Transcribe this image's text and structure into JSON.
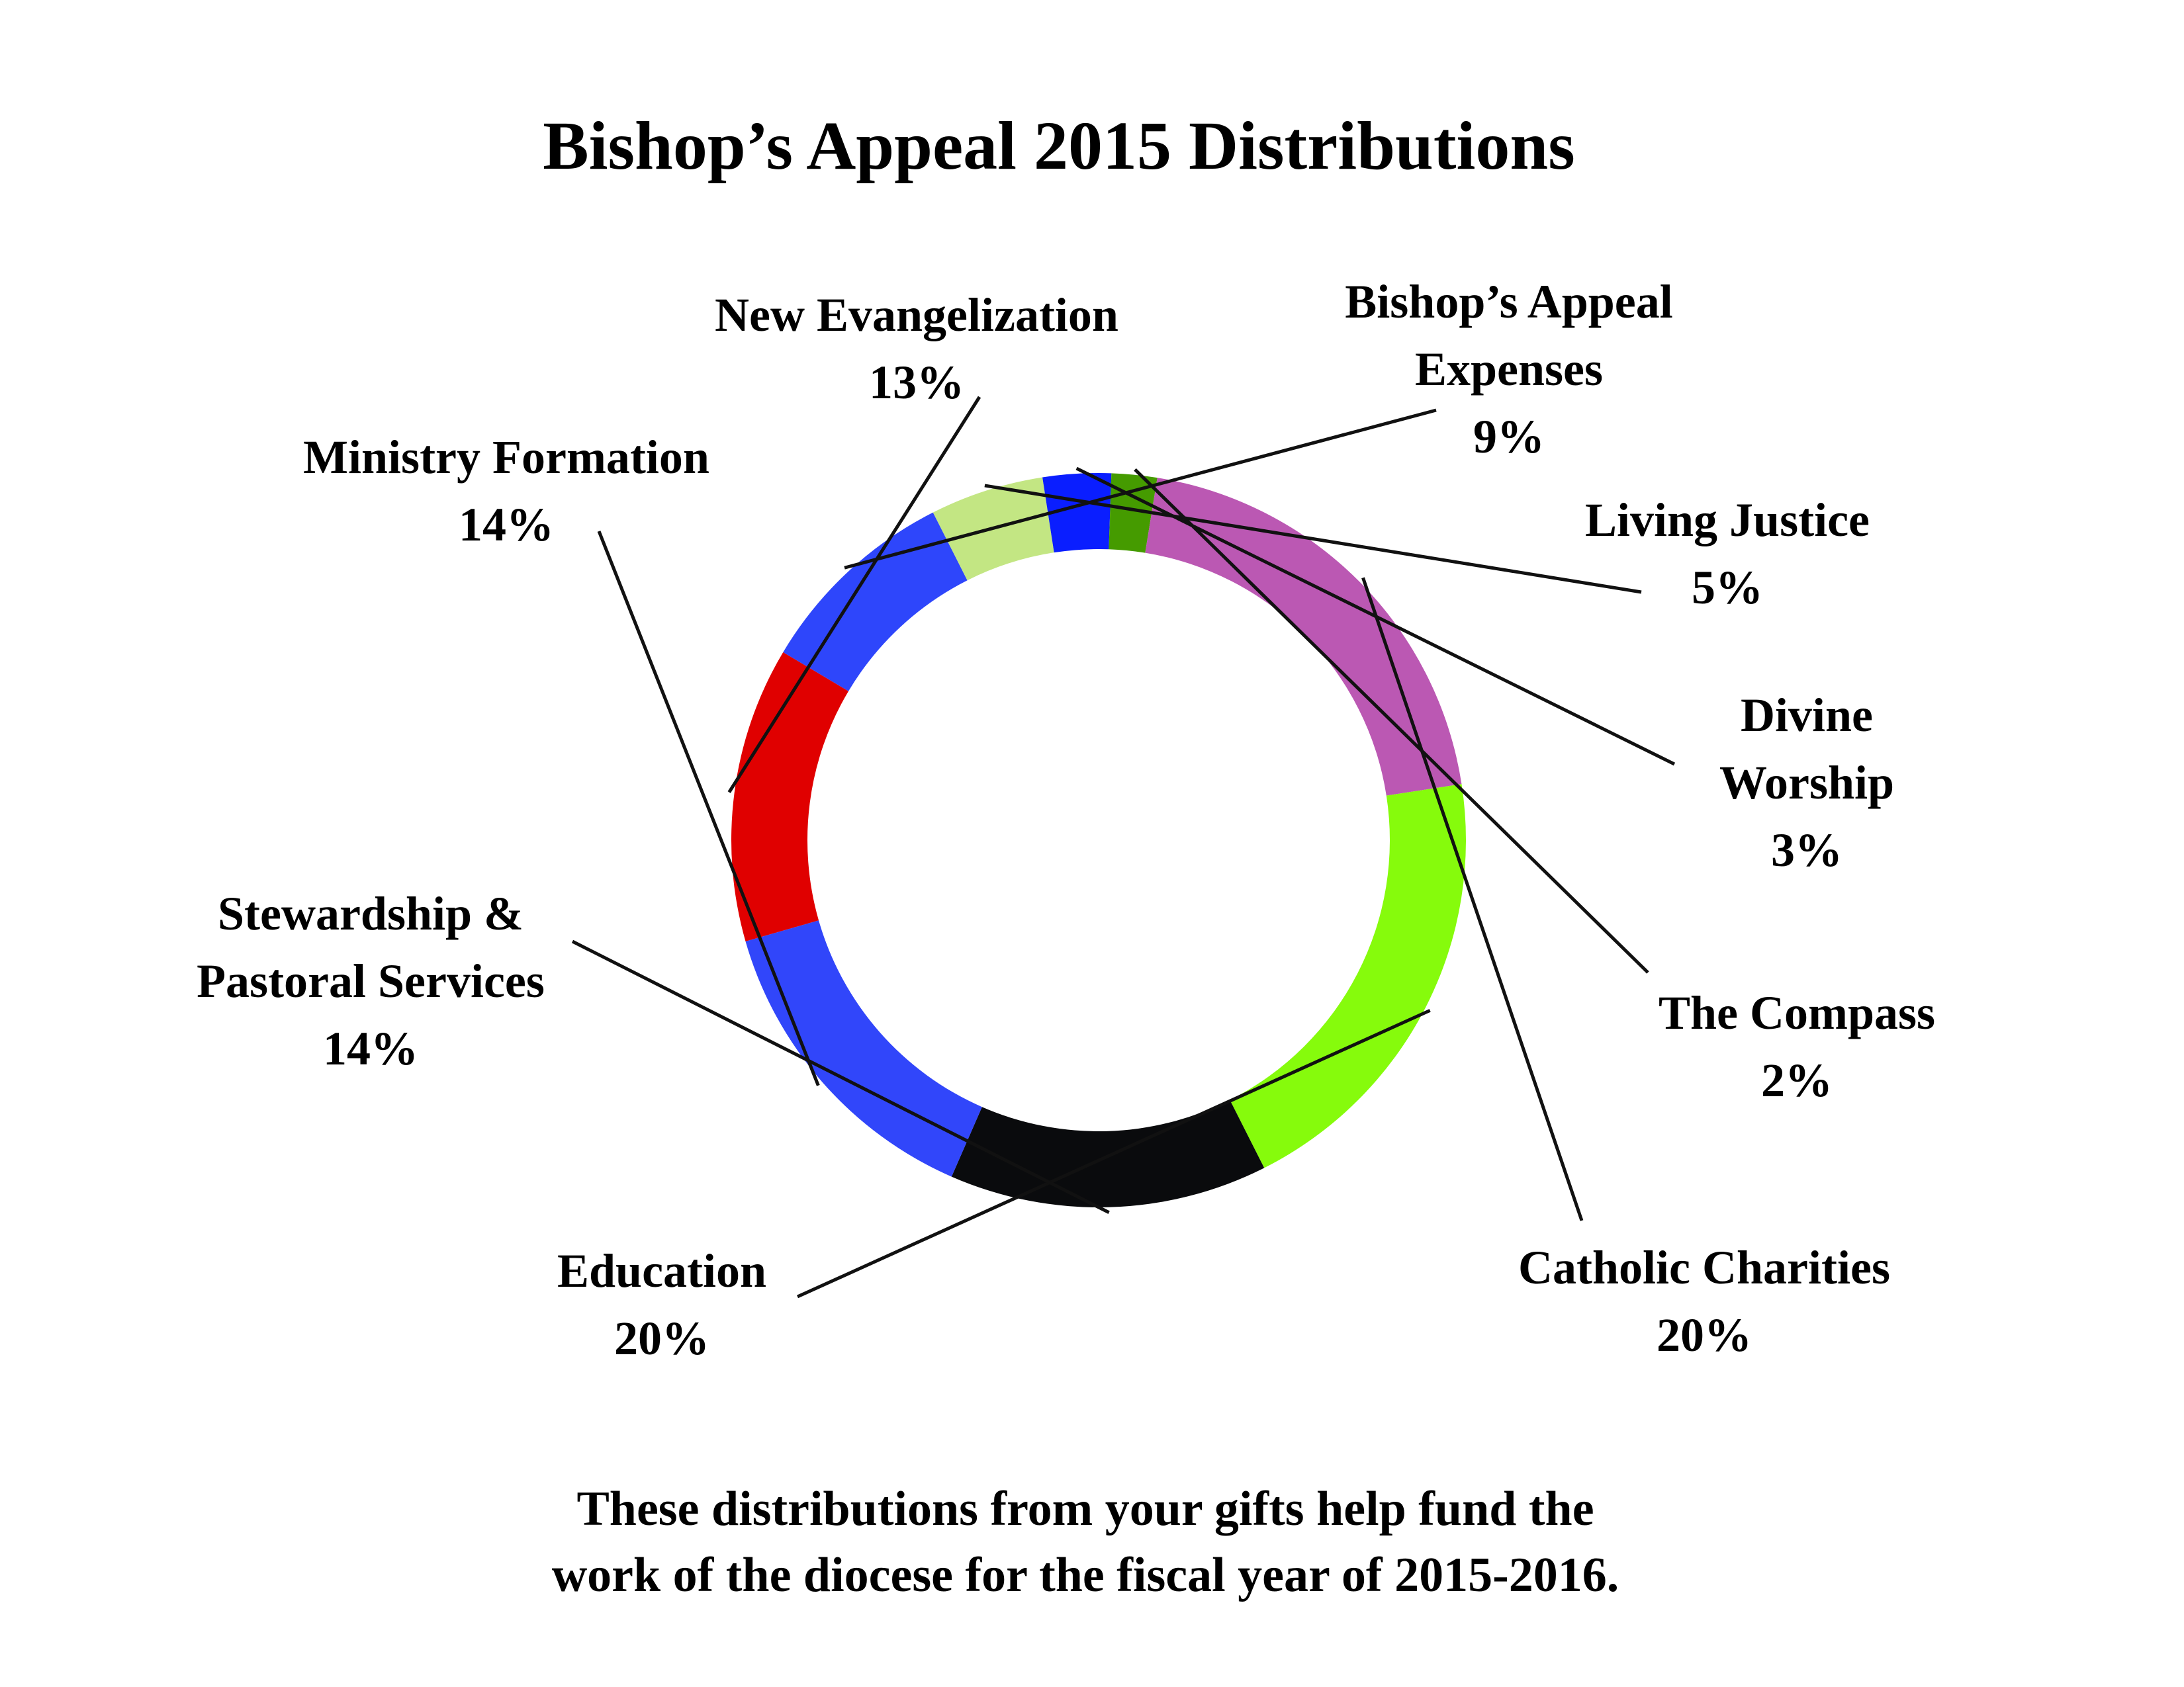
{
  "chart_data": {
    "type": "pie",
    "style": "donut",
    "title": "Bishop’s Appeal 2015 Distributions",
    "caption": [
      "These distributions from your gifts help fund the",
      "work of the diocese for the fiscal year of 2015-2016."
    ],
    "slices": [
      {
        "label": [
          "New Evangelization"
        ],
        "value": 13,
        "display": "13%",
        "color": "#e00000"
      },
      {
        "label": [
          "Bishop’s Appeal",
          "Expenses"
        ],
        "value": 9,
        "display": "9%",
        "color": "#2e46fb"
      },
      {
        "label": [
          "Living Justice"
        ],
        "value": 5,
        "display": "5%",
        "color": "#c3e683"
      },
      {
        "label": [
          "Divine",
          "Worship"
        ],
        "value": 3,
        "display": "3%",
        "color": "#0a1eff"
      },
      {
        "label": [
          "The Compass"
        ],
        "value": 2,
        "display": "2%",
        "color": "#459b00"
      },
      {
        "label": [
          "Catholic Charities"
        ],
        "value": 20,
        "display": "20%",
        "color": "#bb58b3"
      },
      {
        "label": [
          "Education"
        ],
        "value": 20,
        "display": "20%",
        "color": "#86fb0c"
      },
      {
        "label": [
          "Stewardship &",
          "Pastoral Services"
        ],
        "value": 14,
        "display": "14%",
        "color": "#0a0b0d"
      },
      {
        "label": [
          "Ministry Formation"
        ],
        "value": 14,
        "display": "14%",
        "color": "#3146fa"
      }
    ]
  }
}
